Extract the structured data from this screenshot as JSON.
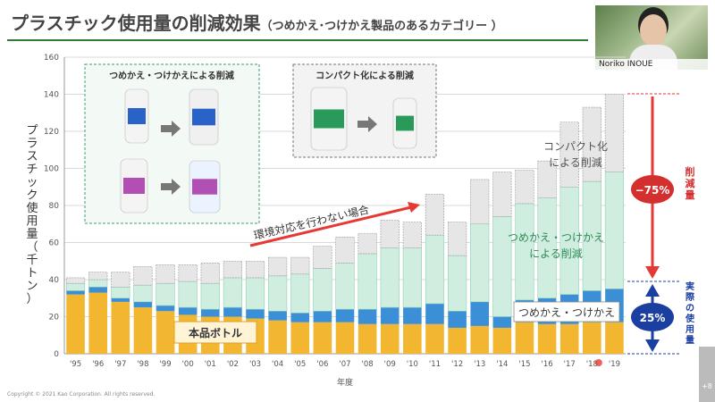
{
  "title": "プラスチック使用量の削減効果",
  "subtitle": "（つめかえ･つけかえ製品のあるカテゴリー ）",
  "presenter": "Noriko INOUE",
  "copyright": "Copyright © 2021 Kao Corporation. All rights reserved.",
  "page_badge": "+8",
  "chart_data": {
    "type": "bar",
    "stacked": true,
    "ylabel": "プラスチック使用量（千トン）",
    "xlabel": "年度",
    "ylim": [
      0,
      160
    ],
    "yticks": [
      0,
      20,
      40,
      60,
      80,
      100,
      120,
      140,
      160
    ],
    "categories": [
      "'95",
      "'96",
      "'97",
      "'98",
      "'99",
      "'00",
      "'01",
      "'02",
      "'03",
      "'04",
      "'05",
      "'06",
      "'07",
      "'08",
      "'09",
      "'10",
      "'11",
      "'12",
      "'13",
      "'14",
      "'15",
      "'16",
      "'17",
      "'18",
      "'19"
    ],
    "series": [
      {
        "name": "本品ボトル",
        "color": "#f2b631",
        "values": [
          32,
          33,
          28,
          25,
          23,
          21,
          20,
          20,
          19,
          18,
          17,
          17,
          17,
          16,
          16,
          16,
          16,
          14,
          15,
          14,
          17,
          16,
          16,
          17,
          17
        ]
      },
      {
        "name": "つめかえ・つけかえ",
        "color": "#3a8fd6",
        "values": [
          2,
          3,
          2,
          3,
          3,
          4,
          4,
          5,
          5,
          5,
          5,
          6,
          7,
          8,
          9,
          9,
          11,
          9,
          13,
          6,
          12,
          14,
          16,
          17,
          18
        ]
      },
      {
        "name": "つめかえ・つけかえによる削減",
        "color": "#cfeee0",
        "values": [
          4,
          4,
          6,
          9,
          12,
          14,
          14,
          16,
          17,
          19,
          21,
          23,
          25,
          30,
          32,
          32,
          37,
          30,
          42,
          54,
          52,
          54,
          58,
          59,
          63
        ]
      },
      {
        "name": "コンパクト化による削減",
        "color": "#e6e6e6",
        "values": [
          3,
          4,
          8,
          10,
          10,
          9,
          11,
          9,
          9,
          10,
          9,
          12,
          14,
          11,
          15,
          14,
          22,
          18,
          24,
          24,
          18,
          20,
          35,
          40,
          42
        ]
      }
    ],
    "annotations": {
      "no_action": "環境対応を行わない場合",
      "compact": "コンパクト化\nによる削減",
      "refill_reduction": "つめかえ・つけかえ\nによる削減",
      "refill": "つめかえ・つけかえ",
      "bottle": "本品ボトル",
      "reduction_pct": "−75%",
      "reduction_label": "削減量",
      "actual_pct": "25%",
      "actual_label": "実際の使用量"
    },
    "insets": {
      "refill_box_title": "つめかえ・つけかえによる削減",
      "compact_box_title": "コンパクト化による削減"
    }
  }
}
